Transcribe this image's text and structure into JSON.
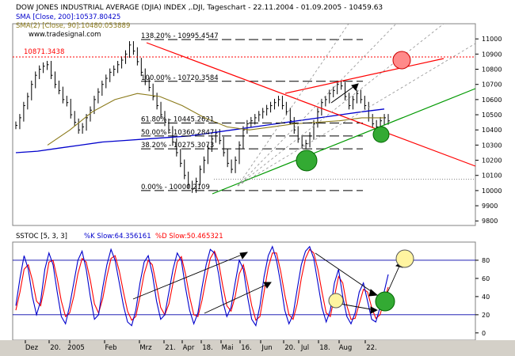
{
  "header": {
    "title": "DOW JONES INDUSTRIAL AVERAGE (DJIA) INDEX ,.DJI, Tageschart - 22.11.2004 - 01.09.2005 - 10459.63",
    "sma200": "SMA [Close, 200]:10537.80425",
    "sma90": "SMA(2) [Close, 90]:10480.053889",
    "website": "www.tradesignal.com",
    "level_label": "10871.3438"
  },
  "stoch_header": {
    "prefix": "SSTOC [5, 3, 3]",
    "k": "%K Slow:64.356161",
    "d": "%D Slow:50.465321"
  },
  "colors": {
    "price_bars": "#000000",
    "sma200": "#0000cc",
    "sma90": "#8b7a1a",
    "fib_lines": "#000000",
    "resistance": "#ff0000",
    "support": "#009900",
    "stoch_k": "#0000cc",
    "stoch_d": "#ff0000",
    "circle_red": "#ff8a8a",
    "circle_green": "#33aa33",
    "circle_yellow": "#fff4a0"
  },
  "chart_data": [
    {
      "type": "line",
      "name": "price",
      "y_axis_ticks": [
        "11000",
        "10900",
        "10800",
        "10700",
        "10600",
        "10500",
        "10400",
        "10300",
        "10200",
        "10100",
        "10000",
        "9900",
        "9800"
      ],
      "ylim": [
        9770,
        11100
      ],
      "fibonacci": [
        {
          "label": "138.20% - 10995.4547",
          "value": 10995.4547
        },
        {
          "label": "100.00% - 10720.3584",
          "value": 10720.3584
        },
        {
          "label": "61.80% - 10445.2621",
          "value": 10445.2621
        },
        {
          "label": "50.00% - 10360.2847",
          "value": 10360.2847
        },
        {
          "label": "38.20% - 10275.3073",
          "value": 10275.3073
        },
        {
          "label": "0.00% - 10000.2109",
          "value": 10000.2109
        }
      ],
      "horizontal_level": 10871.3438,
      "dotted_level": 10075,
      "price_series": [
        10430,
        10480,
        10560,
        10620,
        10700,
        10760,
        10800,
        10820,
        10830,
        10760,
        10700,
        10660,
        10600,
        10580,
        10500,
        10450,
        10400,
        10420,
        10480,
        10530,
        10600,
        10650,
        10700,
        10740,
        10780,
        10800,
        10830,
        10860,
        10900,
        10960,
        10920,
        10850,
        10780,
        10720,
        10680,
        10620,
        10560,
        10500,
        10450,
        10400,
        10320,
        10250,
        10180,
        10100,
        10040,
        10010,
        10060,
        10140,
        10200,
        10280,
        10340,
        10380,
        10330,
        10250,
        10180,
        10140,
        10200,
        10300,
        10400,
        10440,
        10460,
        10480,
        10500,
        10520,
        10540,
        10560,
        10580,
        10600,
        10560,
        10520,
        10460,
        10400,
        10340,
        10300,
        10310,
        10360,
        10440,
        10520,
        10580,
        10600,
        10640,
        10660,
        10700,
        10690,
        10620,
        10560,
        10600,
        10640,
        10600,
        10560,
        10480,
        10440,
        10420,
        10460,
        10480,
        10459.63
      ],
      "sma200_series": [
        10250,
        10260,
        10280,
        10300,
        10320,
        10330,
        10340,
        10350,
        10360,
        10380,
        10400,
        10420,
        10440,
        10460,
        10480,
        10500,
        10520,
        10537.8
      ],
      "sma90_series": [
        10300,
        10400,
        10520,
        10600,
        10640,
        10620,
        10560,
        10480,
        10420,
        10400,
        10420,
        10440,
        10450,
        10460,
        10480,
        10480.05
      ]
    },
    {
      "type": "line",
      "name": "stochastic",
      "y_axis_ticks": [
        "80",
        "60",
        "40",
        "20",
        "0"
      ],
      "ylim": [
        -8,
        100
      ],
      "levels": [
        80,
        20
      ],
      "k_series": [
        30,
        60,
        85,
        70,
        40,
        20,
        35,
        70,
        88,
        75,
        45,
        18,
        10,
        30,
        55,
        80,
        90,
        70,
        40,
        15,
        20,
        50,
        75,
        92,
        80,
        55,
        30,
        12,
        8,
        25,
        55,
        78,
        85,
        65,
        35,
        15,
        20,
        45,
        70,
        88,
        80,
        50,
        25,
        10,
        22,
        50,
        75,
        92,
        88,
        65,
        35,
        18,
        28,
        55,
        80,
        70,
        40,
        15,
        8,
        30,
        62,
        85,
        95,
        80,
        55,
        25,
        10,
        20,
        48,
        75,
        90,
        95,
        82,
        55,
        28,
        12,
        25,
        55,
        70,
        40,
        18,
        10,
        22,
        45,
        55,
        35,
        15,
        12,
        28,
        45,
        64.36
      ],
      "d_series": [
        25,
        45,
        70,
        75,
        58,
        35,
        30,
        52,
        78,
        80,
        60,
        35,
        18,
        22,
        40,
        65,
        82,
        78,
        58,
        32,
        22,
        38,
        62,
        82,
        85,
        68,
        45,
        24,
        14,
        18,
        40,
        65,
        80,
        75,
        52,
        28,
        20,
        32,
        55,
        78,
        84,
        65,
        40,
        20,
        18,
        36,
        60,
        82,
        90,
        78,
        52,
        30,
        24,
        40,
        65,
        75,
        55,
        30,
        14,
        18,
        45,
        72,
        88,
        88,
        68,
        42,
        20,
        15,
        32,
        60,
        82,
        92,
        88,
        70,
        45,
        22,
        18,
        40,
        62,
        55,
        30,
        15,
        16,
        32,
        48,
        45,
        28,
        16,
        20,
        35,
        50.47
      ],
      "x_axis_ticks": [
        "Dez",
        "20.",
        "2005",
        "Feb",
        "Mrz",
        "21.",
        "Apr",
        "18.",
        "Mai",
        "16.",
        "Jun",
        "20.",
        "Jul",
        "18.",
        "Aug",
        "22."
      ]
    }
  ]
}
